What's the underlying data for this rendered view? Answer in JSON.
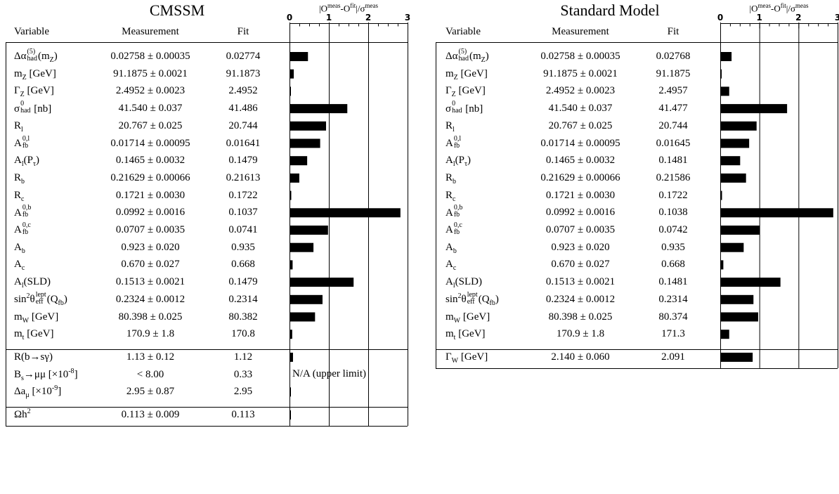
{
  "chart_data": [
    {
      "type": "bar",
      "title": "CMSSM",
      "axis_title": "|O^meas-O^fit|/σ^meas",
      "xlim": [
        0,
        3
      ],
      "ticks": [
        "0",
        "1",
        "2",
        "3"
      ],
      "columns": {
        "variable": "Variable",
        "measurement": "Measurement",
        "fit": "Fit"
      },
      "note": "N/A (upper limit)",
      "rows": [
        {
          "v": [
            "Δα",
            "had",
            "(5)",
            "(m",
            "Z",
            ")"
          ],
          "meas": "0.02758 ± 0.00035",
          "fit": "0.02774",
          "pull": 0.46,
          "group": 0
        },
        {
          "v": [
            "m",
            "Z",
            " [GeV]"
          ],
          "meas": "91.1875 ± 0.0021",
          "fit": "91.1873",
          "pull": 0.1,
          "group": 0
        },
        {
          "v": [
            "Γ",
            "Z",
            " [GeV]"
          ],
          "meas": "2.4952 ± 0.0023",
          "fit": "2.4952",
          "pull": 0.0,
          "group": 0
        },
        {
          "v": [
            "σ",
            "had",
            "0",
            " [nb]"
          ],
          "meas": "41.540 ± 0.037",
          "fit": "41.486",
          "pull": 1.46,
          "group": 0
        },
        {
          "v": [
            "R",
            "l"
          ],
          "meas": "20.767 ± 0.025",
          "fit": "20.744",
          "pull": 0.92,
          "group": 0
        },
        {
          "v": [
            "A",
            "fb",
            "0,l"
          ],
          "meas": "0.01714 ± 0.00095",
          "fit": "0.01641",
          "pull": 0.77,
          "group": 0
        },
        {
          "v": [
            "A",
            "l",
            "(P",
            "τ",
            ")"
          ],
          "meas": "0.1465 ± 0.0032",
          "fit": "0.1479",
          "pull": 0.44,
          "group": 0
        },
        {
          "v": [
            "R",
            "b"
          ],
          "meas": "0.21629 ± 0.00066",
          "fit": "0.21613",
          "pull": 0.24,
          "group": 0
        },
        {
          "v": [
            "R",
            "c"
          ],
          "meas": "0.1721 ± 0.0030",
          "fit": "0.1722",
          "pull": 0.03,
          "group": 0
        },
        {
          "v": [
            "A",
            "fb",
            "0,b"
          ],
          "meas": "0.0992 ± 0.0016",
          "fit": "0.1037",
          "pull": 2.81,
          "group": 0
        },
        {
          "v": [
            "A",
            "fb",
            "0,c"
          ],
          "meas": "0.0707 ± 0.0035",
          "fit": "0.0741",
          "pull": 0.97,
          "group": 0
        },
        {
          "v": [
            "A",
            "b"
          ],
          "meas": "0.923 ± 0.020",
          "fit": "0.935",
          "pull": 0.6,
          "group": 0
        },
        {
          "v": [
            "A",
            "c"
          ],
          "meas": "0.670 ± 0.027",
          "fit": "0.668",
          "pull": 0.07,
          "group": 0
        },
        {
          "v": [
            "A",
            "l",
            "(SLD)"
          ],
          "meas": "0.1513 ± 0.0021",
          "fit": "0.1479",
          "pull": 1.62,
          "group": 0
        },
        {
          "v": [
            "sin",
            "2",
            "θ",
            "eff",
            "lept",
            "(Q",
            "fb",
            ")"
          ],
          "meas": "0.2324 ± 0.0012",
          "fit": "0.2314",
          "pull": 0.83,
          "group": 0
        },
        {
          "v": [
            "m",
            "W",
            " [GeV]"
          ],
          "meas": "80.398 ± 0.025",
          "fit": "80.382",
          "pull": 0.64,
          "group": 0
        },
        {
          "v": [
            "m",
            "t",
            " [GeV]"
          ],
          "meas": "170.9 ± 1.8",
          "fit": "170.8",
          "pull": 0.06,
          "group": 0
        },
        {
          "v": [
            "R(b→sγ)"
          ],
          "meas": "1.13 ± 0.12",
          "fit": "1.12",
          "pull": 0.08,
          "group": 1
        },
        {
          "v": [
            "B",
            "s",
            "→μμ [×10",
            "-8",
            "]"
          ],
          "meas": "< 8.00",
          "fit": "0.33",
          "pull": null,
          "group": 1
        },
        {
          "v": [
            "Δa",
            "μ",
            " [×10",
            "-9",
            "]"
          ],
          "meas": "2.95 ± 0.87",
          "fit": "2.95",
          "pull": 0.0,
          "group": 1
        },
        {
          "v": [
            "Ωh",
            "2"
          ],
          "meas": "0.113 ± 0.009",
          "fit": "0.113",
          "pull": 0.0,
          "group": 2
        }
      ]
    },
    {
      "type": "bar",
      "title": "Standard Model",
      "axis_title": "|O^meas-O^fit|/σ^meas",
      "xlim": [
        0,
        3
      ],
      "ticks": [
        "0",
        "1",
        "2",
        "3"
      ],
      "columns": {
        "variable": "Variable",
        "measurement": "Measurement",
        "fit": "Fit"
      },
      "rows": [
        {
          "v": [
            "Δα",
            "had",
            "(5)",
            "(m",
            "Z",
            ")"
          ],
          "meas": "0.02758 ± 0.00035",
          "fit": "0.02768",
          "pull": 0.28,
          "group": 0
        },
        {
          "v": [
            "m",
            "Z",
            " [GeV]"
          ],
          "meas": "91.1875 ± 0.0021",
          "fit": "91.1875",
          "pull": 0.0,
          "group": 0
        },
        {
          "v": [
            "Γ",
            "Z",
            " [GeV]"
          ],
          "meas": "2.4952 ± 0.0023",
          "fit": "2.4957",
          "pull": 0.22,
          "group": 0
        },
        {
          "v": [
            "σ",
            "had",
            "0",
            " [nb]"
          ],
          "meas": "41.540 ± 0.037",
          "fit": "41.477",
          "pull": 1.7,
          "group": 0
        },
        {
          "v": [
            "R",
            "l"
          ],
          "meas": "20.767 ± 0.025",
          "fit": "20.744",
          "pull": 0.92,
          "group": 0
        },
        {
          "v": [
            "A",
            "fb",
            "0,l"
          ],
          "meas": "0.01714 ± 0.00095",
          "fit": "0.01645",
          "pull": 0.73,
          "group": 0
        },
        {
          "v": [
            "A",
            "l",
            "(P",
            "τ",
            ")"
          ],
          "meas": "0.1465 ± 0.0032",
          "fit": "0.1481",
          "pull": 0.5,
          "group": 0
        },
        {
          "v": [
            "R",
            "b"
          ],
          "meas": "0.21629 ± 0.00066",
          "fit": "0.21586",
          "pull": 0.65,
          "group": 0
        },
        {
          "v": [
            "R",
            "c"
          ],
          "meas": "0.1721 ± 0.0030",
          "fit": "0.1722",
          "pull": 0.03,
          "group": 0
        },
        {
          "v": [
            "A",
            "fb",
            "0,b"
          ],
          "meas": "0.0992 ± 0.0016",
          "fit": "0.1038",
          "pull": 2.88,
          "group": 0
        },
        {
          "v": [
            "A",
            "fb",
            "0,c"
          ],
          "meas": "0.0707 ± 0.0035",
          "fit": "0.0742",
          "pull": 1.0,
          "group": 0
        },
        {
          "v": [
            "A",
            "b"
          ],
          "meas": "0.923 ± 0.020",
          "fit": "0.935",
          "pull": 0.59,
          "group": 0
        },
        {
          "v": [
            "A",
            "c"
          ],
          "meas": "0.670 ± 0.027",
          "fit": "0.668",
          "pull": 0.07,
          "group": 0
        },
        {
          "v": [
            "A",
            "l",
            "(SLD)"
          ],
          "meas": "0.1513 ± 0.0021",
          "fit": "0.1481",
          "pull": 1.53,
          "group": 0
        },
        {
          "v": [
            "sin",
            "2",
            "θ",
            "eff",
            "lept",
            "(Q",
            "fb",
            ")"
          ],
          "meas": "0.2324 ± 0.0012",
          "fit": "0.2314",
          "pull": 0.84,
          "group": 0
        },
        {
          "v": [
            "m",
            "W",
            " [GeV]"
          ],
          "meas": "80.398 ± 0.025",
          "fit": "80.374",
          "pull": 0.96,
          "group": 0
        },
        {
          "v": [
            "m",
            "t",
            " [GeV]"
          ],
          "meas": "170.9 ± 1.8",
          "fit": "171.3",
          "pull": 0.22,
          "group": 0
        },
        {
          "v": [
            "Γ",
            "W",
            " [GeV]"
          ],
          "meas": "2.140 ± 0.060",
          "fit": "2.091",
          "pull": 0.82,
          "group": 1
        }
      ]
    }
  ]
}
